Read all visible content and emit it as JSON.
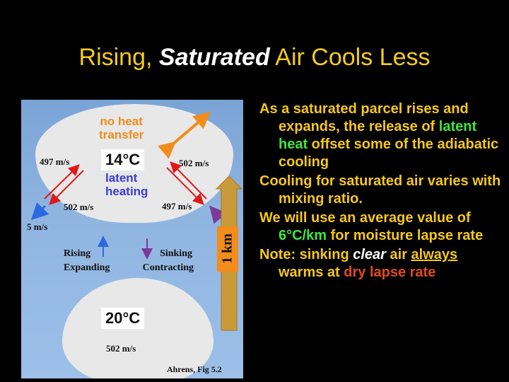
{
  "title": {
    "part1": "Rising, ",
    "part2": "Saturated",
    "part3": " Air Cools Less"
  },
  "figure": {
    "no_heat_line1": "no heat",
    "no_heat_line2": "transfer",
    "temp_top": "14°C",
    "latent_line1": "latent",
    "latent_line2": "heating",
    "label_497_left": "497 m/s",
    "label_502_right": "502 m/s",
    "label_502_left": "502 m/s",
    "label_497_right": "497 m/s",
    "label_5": "5 m/s",
    "rising": "Rising",
    "expanding": "Expanding",
    "sinking": "Sinking",
    "contracting": "Contracting",
    "km": "1 km",
    "temp_bottom": "20°C",
    "label_502_bottom": "502 m/s",
    "credit": "Ahrens, Fig 5.2"
  },
  "bullets": {
    "b1_a": "As a saturated parcel rises and expands, the release of ",
    "b1_green": "latent heat",
    "b1_b": " offset some of the adiabatic cooling",
    "b2": "Cooling for saturated air varies with mixing ratio.",
    "b3_a": "We will use an average value of ",
    "b3_green": "6°C/km",
    "b3_b": " for moisture lapse rate",
    "b4_a": "Note: sinking ",
    "b4_clear": "clear",
    "b4_b": " air ",
    "b4_always": "always",
    "b4_c": " warms at ",
    "b4_red": "dry lapse rate"
  },
  "colors": {
    "title": "#f5cc1c",
    "text": "#f5c81a",
    "green": "#3ee63e",
    "red": "#e24a1a"
  }
}
